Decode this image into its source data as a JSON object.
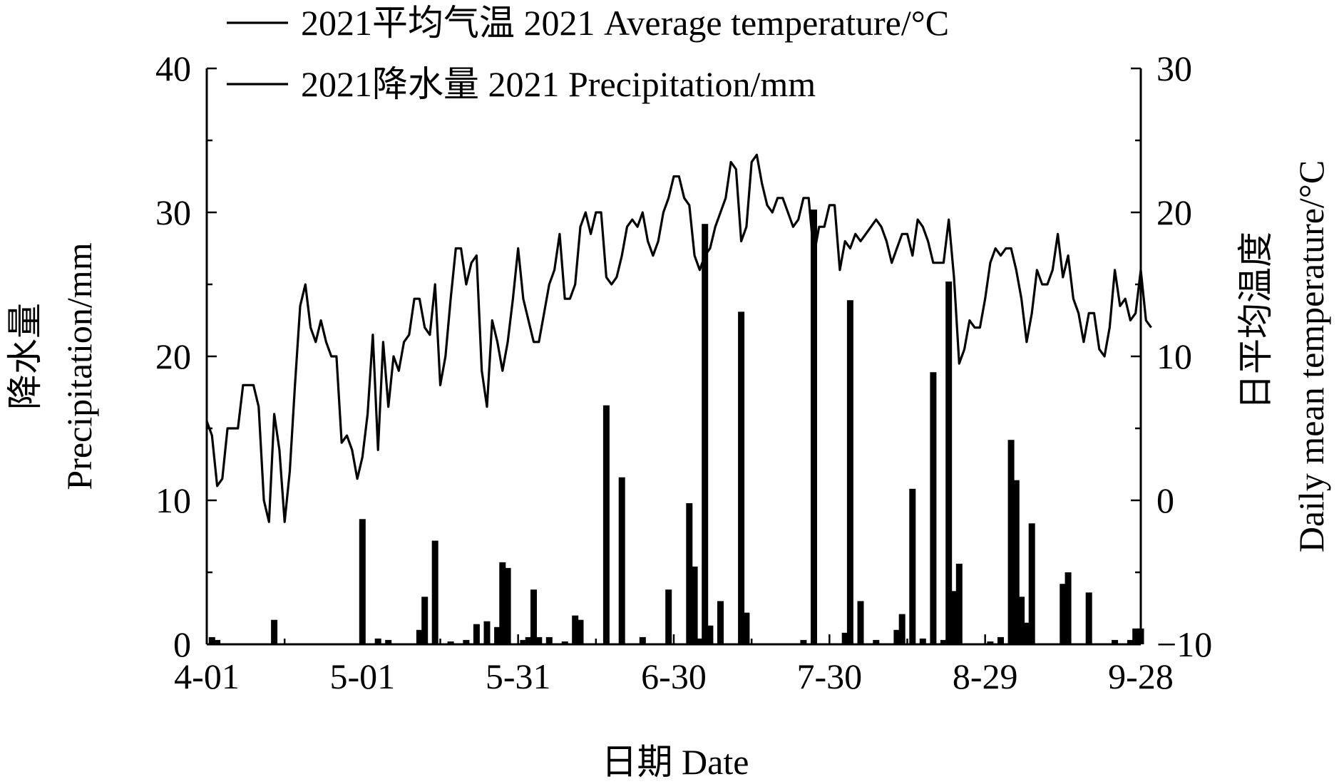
{
  "chart_data": {
    "type": "bar+line",
    "legend": [
      {
        "label": "2021平均气温 2021 Average temperature/°C",
        "series": "temperature"
      },
      {
        "label": "2021降水量 2021 Precipitation/mm",
        "series": "precipitation"
      }
    ],
    "x_axis": {
      "title": "日期 Date",
      "ticks": [
        "4-01",
        "5-01",
        "5-31",
        "6-30",
        "7-30",
        "8-29",
        "9-28"
      ],
      "tick_day_index": [
        0,
        30,
        60,
        90,
        120,
        150,
        180
      ],
      "range_days": [
        0,
        180
      ]
    },
    "y_left": {
      "title_cn": "降水量",
      "title_en": "Precipitation/mm",
      "ticks": [
        "0",
        "10",
        "20",
        "30",
        "40"
      ],
      "range": [
        0,
        40
      ]
    },
    "y_right": {
      "title_cn": "日平均温度",
      "title_en": "Daily mean temperature/°C",
      "ticks": [
        "−10",
        "0",
        "10",
        "20",
        "30"
      ],
      "range": [
        -10,
        30
      ]
    },
    "temperature": {
      "name": "2021平均气温 2021 Average temperature/°C",
      "unit": "°C",
      "values": [
        5.5,
        4.5,
        1.0,
        1.5,
        5.0,
        5.0,
        5.0,
        8.0,
        8.0,
        8.0,
        6.5,
        0.0,
        -1.5,
        6.0,
        3.5,
        -1.5,
        2.0,
        8.0,
        13.5,
        15.0,
        12.0,
        11.0,
        12.5,
        11.0,
        10.0,
        10.0,
        4.0,
        4.5,
        3.5,
        1.5,
        3.0,
        6.0,
        11.5,
        3.5,
        11.0,
        6.5,
        10.0,
        9.0,
        11.0,
        11.5,
        14.0,
        14.0,
        12.0,
        11.5,
        15.0,
        8.0,
        10.0,
        14.0,
        17.5,
        17.5,
        15.0,
        16.5,
        17.0,
        9.0,
        6.5,
        12.5,
        11.0,
        9.0,
        11.0,
        14.0,
        17.5,
        14.0,
        12.5,
        11.0,
        11.0,
        13.0,
        15.0,
        16.0,
        18.5,
        14.0,
        14.0,
        15.0,
        19.0,
        20.0,
        18.5,
        20.0,
        20.0,
        15.5,
        15.0,
        15.5,
        17.0,
        19.0,
        19.5,
        19.0,
        20.0,
        18.0,
        17.0,
        18.0,
        20.0,
        21.0,
        22.5,
        22.5,
        21.0,
        20.5,
        17.0,
        16.0,
        17.0,
        17.5,
        19.0,
        20.0,
        21.0,
        23.5,
        23.0,
        18.0,
        19.0,
        23.5,
        24.0,
        22.0,
        20.5,
        20.0,
        21.0,
        21.0,
        20.0,
        19.0,
        19.5,
        21.0,
        21.0,
        17.0,
        19.0,
        19.0,
        20.5,
        20.5,
        16.0,
        18.0,
        17.5,
        18.5,
        18.0,
        18.5,
        19.0,
        19.5,
        19.0,
        18.0,
        16.5,
        17.5,
        18.5,
        18.5,
        17.0,
        19.5,
        19.0,
        18.0,
        16.5,
        16.5,
        16.5,
        19.5,
        15.5,
        9.5,
        10.5,
        12.5,
        12.0,
        12.0,
        14.0,
        16.5,
        17.5,
        17.0,
        17.5,
        17.5,
        16.0,
        14.0,
        11.0,
        13.0,
        16.0,
        15.0,
        15.0,
        16.0,
        18.5,
        15.5,
        17.0,
        14.0,
        13.0,
        11.0,
        13.0,
        13.0,
        10.5,
        10.0,
        12.0,
        16.0,
        13.5,
        14.0,
        12.5,
        13.0,
        16.0,
        12.5,
        12.0
      ]
    },
    "precipitation": {
      "name": "2021降水量 2021 Precipitation/mm",
      "unit": "mm",
      "bars": [
        {
          "day": 1,
          "value": 0.5
        },
        {
          "day": 2,
          "value": 0.3
        },
        {
          "day": 13,
          "value": 1.7
        },
        {
          "day": 30,
          "value": 8.7
        },
        {
          "day": 33,
          "value": 0.4
        },
        {
          "day": 35,
          "value": 0.3
        },
        {
          "day": 41,
          "value": 1.0
        },
        {
          "day": 42,
          "value": 3.3
        },
        {
          "day": 44,
          "value": 7.2
        },
        {
          "day": 47,
          "value": 0.2
        },
        {
          "day": 50,
          "value": 0.3
        },
        {
          "day": 52,
          "value": 1.4
        },
        {
          "day": 54,
          "value": 1.6
        },
        {
          "day": 56,
          "value": 1.2
        },
        {
          "day": 57,
          "value": 5.7
        },
        {
          "day": 58,
          "value": 5.3
        },
        {
          "day": 61,
          "value": 0.3
        },
        {
          "day": 62,
          "value": 0.5
        },
        {
          "day": 63,
          "value": 3.8
        },
        {
          "day": 64,
          "value": 0.5
        },
        {
          "day": 66,
          "value": 0.5
        },
        {
          "day": 69,
          "value": 0.2
        },
        {
          "day": 71,
          "value": 2.0
        },
        {
          "day": 72,
          "value": 1.7
        },
        {
          "day": 77,
          "value": 16.6
        },
        {
          "day": 80,
          "value": 11.6
        },
        {
          "day": 84,
          "value": 0.5
        },
        {
          "day": 89,
          "value": 3.8
        },
        {
          "day": 93,
          "value": 9.8
        },
        {
          "day": 94,
          "value": 5.4
        },
        {
          "day": 95,
          "value": 0.4
        },
        {
          "day": 96,
          "value": 29.2
        },
        {
          "day": 97,
          "value": 1.3
        },
        {
          "day": 99,
          "value": 3.0
        },
        {
          "day": 103,
          "value": 23.1
        },
        {
          "day": 104,
          "value": 2.2
        },
        {
          "day": 115,
          "value": 0.3
        },
        {
          "day": 117,
          "value": 30.2
        },
        {
          "day": 123,
          "value": 0.8
        },
        {
          "day": 124,
          "value": 23.9
        },
        {
          "day": 126,
          "value": 3.0
        },
        {
          "day": 129,
          "value": 0.3
        },
        {
          "day": 133,
          "value": 1.0
        },
        {
          "day": 134,
          "value": 2.1
        },
        {
          "day": 136,
          "value": 10.8
        },
        {
          "day": 138,
          "value": 0.4
        },
        {
          "day": 140,
          "value": 18.9
        },
        {
          "day": 142,
          "value": 0.3
        },
        {
          "day": 143,
          "value": 25.2
        },
        {
          "day": 144,
          "value": 3.7
        },
        {
          "day": 145,
          "value": 5.6
        },
        {
          "day": 151,
          "value": 0.2
        },
        {
          "day": 153,
          "value": 0.5
        },
        {
          "day": 155,
          "value": 14.2
        },
        {
          "day": 156,
          "value": 11.4
        },
        {
          "day": 157,
          "value": 3.3
        },
        {
          "day": 158,
          "value": 1.5
        },
        {
          "day": 159,
          "value": 8.4
        },
        {
          "day": 165,
          "value": 4.2
        },
        {
          "day": 166,
          "value": 5.0
        },
        {
          "day": 170,
          "value": 3.6
        },
        {
          "day": 175,
          "value": 0.3
        },
        {
          "day": 178,
          "value": 0.3
        },
        {
          "day": 179,
          "value": 1.1
        },
        {
          "day": 180,
          "value": 1.1
        }
      ]
    }
  }
}
